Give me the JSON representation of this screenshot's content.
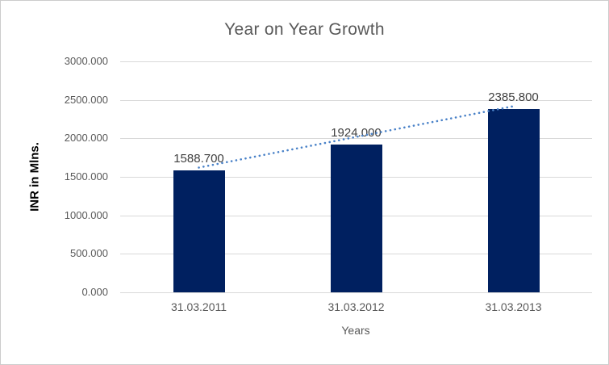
{
  "chart_data": {
    "type": "bar",
    "title": "Year on Year Growth",
    "xlabel": "Years",
    "ylabel": "INR in Mlns.",
    "categories": [
      "31.03.2011",
      "31.03.2012",
      "31.03.2013"
    ],
    "series": [
      {
        "name": "Year on Year Growth",
        "values": [
          1588.7,
          1924.0,
          2385.8
        ],
        "value_labels": [
          "1588.700",
          "1924.000",
          "2385.800"
        ]
      }
    ],
    "ylim": [
      0,
      3000
    ],
    "ytick_step": 500,
    "ytick_labels": [
      "0.000",
      "500.000",
      "1000.000",
      "1500.000",
      "2000.000",
      "2500.000",
      "3000.000"
    ],
    "grid": "horizontal",
    "legend": "none",
    "trendline": {
      "type": "linear",
      "style": "dotted"
    },
    "colors": {
      "bar": "#002060",
      "trendline": "#4a82c8",
      "gridline": "#d9d9d9",
      "axis_line": "#d9d9d9",
      "title_text": "#595959",
      "tick_text": "#595959",
      "data_label_text": "#404040",
      "background": "#ffffff",
      "frame_border": "#cccccc"
    }
  }
}
